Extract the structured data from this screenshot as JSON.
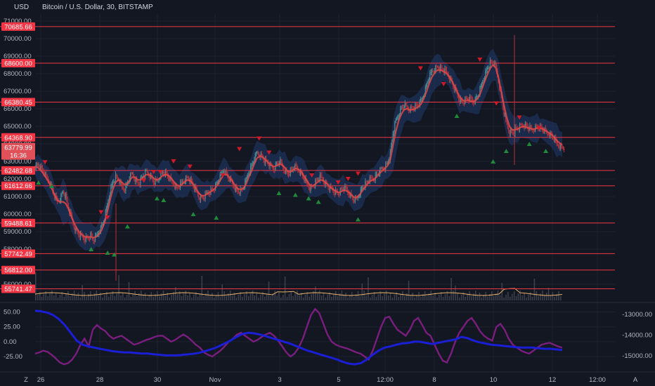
{
  "header": {
    "currency": "USD",
    "title": "Bitcoin / U.S. Dollar, 30, BITSTAMP"
  },
  "price_axis_ticks": [
    "71000.00",
    "70000.00",
    "69000.00",
    "68000.00",
    "67000.00",
    "66000.00",
    "65000.00",
    "64000.00",
    "63000.00",
    "62000.00",
    "61000.00",
    "60000.00",
    "59000.00",
    "58000.00",
    "56000.00"
  ],
  "current_price": {
    "value": "63779.99",
    "countdown": "16:36"
  },
  "x_ticks": [
    "26",
    "28",
    "30",
    "Nov",
    "3",
    "5",
    "12:00",
    "8",
    "10",
    "12",
    "12:00"
  ],
  "footer": {
    "left_icon": "Z",
    "right_icon": "A"
  },
  "oscillator_left_ticks": [
    "50.00",
    "25.00",
    "0.00",
    "-25.00"
  ],
  "oscillator_right_ticks": [
    "-13000.00",
    "-14000.00",
    "-15000.00"
  ],
  "colors": {
    "background": "#131722",
    "grid": "#1e222d",
    "level_line": "#f23645",
    "ma_line": "#e04848",
    "band_fill": "#1f3a6b",
    "up_candle": "#4a8a90",
    "down_candle": "#b3323d",
    "buy_marker": "#1f8a3a",
    "sell_marker": "#d01a2a",
    "osc_blue": "#1a1fd6",
    "osc_purple": "#7a1e7e",
    "volume_ma": "#e8b46a"
  },
  "chart_data": {
    "type": "candlestick",
    "title": "Bitcoin / U.S. Dollar, 30, BITSTAMP",
    "x_tick_labels": [
      "26",
      "28",
      "30",
      "Nov",
      "3",
      "5",
      "12:00",
      "8",
      "10",
      "12",
      "12:00"
    ],
    "ylim": [
      55200,
      71400
    ],
    "levels": [
      "70685.66",
      "68600.00",
      "66380.45",
      "64368.90",
      "62482.68",
      "61612.66",
      "59488.61",
      "57742.49",
      "56812.00",
      "55741.47"
    ],
    "close_profile": [
      62700,
      62850,
      62600,
      62400,
      62100,
      61900,
      61500,
      61000,
      60700,
      60900,
      61300,
      61000,
      60300,
      59800,
      59300,
      59000,
      58800,
      58700,
      58600,
      58650,
      58800,
      58500,
      58700,
      59000,
      59300,
      59800,
      60500,
      61300,
      61800,
      62100,
      62000,
      61600,
      61400,
      61600,
      62100,
      62300,
      62000,
      61700,
      61900,
      62200,
      62400,
      62300,
      62000,
      61800,
      61900,
      62200,
      62400,
      62300,
      62100,
      61900,
      61700,
      61500,
      61600,
      61800,
      62000,
      62100,
      61900,
      61600,
      61300,
      61000,
      60900,
      61000,
      61200,
      61300,
      61400,
      61600,
      61900,
      62200,
      62500,
      62300,
      62000,
      61800,
      61500,
      61300,
      61300,
      61500,
      61900,
      62400,
      62700,
      63200,
      63500,
      63400,
      63200,
      63000,
      62900,
      62700,
      62600,
      62800,
      63000,
      62800,
      62500,
      62300,
      62400,
      62600,
      62700,
      62500,
      62300,
      62000,
      61700,
      61500,
      61600,
      61800,
      62000,
      62100,
      61900,
      61700,
      61500,
      61400,
      61300,
      61200,
      61300,
      61500,
      61400,
      61200,
      61000,
      60800,
      60900,
      61200,
      61500,
      61700,
      61900,
      62000,
      62000,
      62200,
      62400,
      62600,
      62700,
      62900,
      63400,
      64600,
      65300,
      65700,
      66000,
      66200,
      66100,
      66000,
      66050,
      66100,
      66200,
      66400,
      66800,
      67300,
      67800,
      68100,
      68300,
      68400,
      68300,
      68200,
      68100,
      67900,
      67600,
      67200,
      66900,
      66500,
      66400,
      66500,
      66600,
      66500,
      66400,
      66600,
      66900,
      67400,
      67900,
      68300,
      68600,
      68700,
      68400,
      67600,
      66700,
      65800,
      65100,
      64700,
      64600,
      64800,
      64900,
      65000,
      65100,
      65000,
      64900,
      64800,
      64900,
      65000,
      64900,
      64800,
      64700,
      64600,
      64500,
      64300,
      64000,
      63900,
      63800
    ],
    "ma_profile": [
      62700,
      62650,
      62500,
      62300,
      62050,
      61800,
      61450,
      61100,
      60800,
      60700,
      60700,
      60600,
      60300,
      59900,
      59500,
      59200,
      58950,
      58800,
      58700,
      58700,
      58700,
      58650,
      58700,
      58850,
      59100,
      59500,
      60100,
      60800,
      61400,
      61800,
      61950,
      61850,
      61700,
      61700,
      61900,
      62100,
      62100,
      61950,
      61950,
      62100,
      62250,
      62250,
      62150,
      62000,
      61950,
      62050,
      62200,
      62250,
      62200,
      62050,
      61850,
      61650,
      61600,
      61700,
      61850,
      61950,
      61900,
      61700,
      61450,
      61200,
      61050,
      61050,
      61150,
      61250,
      61350,
      61500,
      61750,
      62000,
      62250,
      62250,
      62100,
      61900,
      61650,
      61450,
      61400,
      61450,
      61700,
      62100,
      62450,
      62850,
      63200,
      63300,
      63250,
      63100,
      62950,
      62800,
      62700,
      62750,
      62850,
      62800,
      62650,
      62450,
      62400,
      62500,
      62600,
      62550,
      62400,
      62150,
      61900,
      61650,
      61600,
      61700,
      61850,
      61950,
      61900,
      61750,
      61600,
      61450,
      61350,
      61250,
      61250,
      61350,
      61350,
      61250,
      61100,
      60950,
      60950,
      61100,
      61350,
      61550,
      61750,
      61900,
      61950,
      62100,
      62300,
      62450,
      62600,
      62750,
      63100,
      63900,
      64700,
      65300,
      65700,
      65950,
      66000,
      65950,
      65950,
      66000,
      66100,
      66250,
      66550,
      66950,
      67400,
      67800,
      68050,
      68200,
      68200,
      68150,
      68050,
      67900,
      67650,
      67350,
      67000,
      66700,
      66500,
      66450,
      66500,
      66450,
      66400,
      66500,
      66700,
      67100,
      67550,
      67950,
      68300,
      68500,
      68350,
      67800,
      67000,
      66200,
      65500,
      65000,
      64800,
      64800,
      64850,
      64950,
      65000,
      64950,
      64900,
      64850,
      64850,
      64900,
      64900,
      64850,
      64750,
      64650,
      64550,
      64400,
      64200,
      64050,
      63950
    ],
    "sell_markers": [
      [
        0.03,
        62950
      ],
      [
        0.2,
        60100
      ],
      [
        0.22,
        59800
      ],
      [
        0.33,
        61900
      ],
      [
        0.36,
        62400
      ],
      [
        0.38,
        62400
      ],
      [
        0.42,
        63000
      ],
      [
        0.47,
        62700
      ],
      [
        0.57,
        62200
      ],
      [
        0.62,
        63700
      ],
      [
        0.68,
        64300
      ],
      [
        0.71,
        63500
      ],
      [
        0.84,
        62200
      ],
      [
        0.92,
        61800
      ],
      [
        0.95,
        62000
      ],
      [
        0.98,
        62300
      ],
      [
        1.17,
        68300
      ],
      [
        1.24,
        67400
      ],
      [
        1.35,
        68800
      ],
      [
        1.4,
        66300
      ],
      [
        1.47,
        65500
      ],
      [
        1.53,
        64900
      ]
    ],
    "buy_markers": [
      [
        0.01,
        61800
      ],
      [
        0.05,
        61600
      ],
      [
        0.17,
        58000
      ],
      [
        0.22,
        57800
      ],
      [
        0.24,
        57700
      ],
      [
        0.28,
        59300
      ],
      [
        0.37,
        60900
      ],
      [
        0.39,
        60800
      ],
      [
        0.48,
        60000
      ],
      [
        0.55,
        59800
      ],
      [
        0.74,
        61200
      ],
      [
        0.79,
        61100
      ],
      [
        0.83,
        60900
      ],
      [
        0.86,
        60700
      ],
      [
        0.98,
        59700
      ],
      [
        1.28,
        65600
      ],
      [
        1.39,
        63000
      ],
      [
        1.43,
        63600
      ],
      [
        1.5,
        64000
      ],
      [
        1.55,
        63600
      ]
    ],
    "volume_ma_level": "low",
    "oscillator": {
      "left_ylim": [
        -45,
        60
      ],
      "right_ylim": [
        -15600,
        -12600
      ],
      "blue_series_name": "",
      "purple_series_name": "",
      "blue_profile": [
        52,
        51,
        49,
        45,
        38,
        28,
        15,
        2,
        -5,
        -8,
        -10,
        -12,
        -14,
        -16,
        -17,
        -18,
        -18,
        -19,
        -20,
        -20,
        -21,
        -22,
        -23,
        -23,
        -23,
        -22,
        -21,
        -20,
        -18,
        -15,
        -12,
        -8,
        -3,
        2,
        8,
        13,
        15,
        14,
        12,
        9,
        6,
        3,
        0,
        -3,
        -7,
        -11,
        -15,
        -18,
        -21,
        -24,
        -27,
        -30,
        -34,
        -37,
        -38,
        -36,
        -30,
        -22,
        -15,
        -10,
        -8,
        -5,
        -3,
        -2,
        0,
        0,
        -2,
        -4,
        -2,
        0,
        2,
        4,
        8,
        6,
        2,
        -1,
        -3,
        -5,
        -6,
        -7,
        -8,
        -9,
        -10,
        -10,
        -10,
        -11,
        -12,
        -12,
        -13,
        -14
      ],
      "purple_profile": [
        -20,
        -18,
        -15,
        -17,
        -22,
        -28,
        -35,
        -38,
        -36,
        -30,
        -20,
        -5,
        5,
        -8,
        20,
        28,
        22,
        18,
        10,
        5,
        8,
        10,
        5,
        0,
        -5,
        -3,
        0,
        3,
        5,
        8,
        10,
        10,
        5,
        0,
        3,
        8,
        12,
        8,
        2,
        -5,
        -10,
        -18,
        -22,
        -25,
        -20,
        -15,
        -8,
        0,
        5,
        12,
        15,
        10,
        5,
        0,
        3,
        8,
        12,
        15,
        10,
        2,
        -8,
        -18,
        -25,
        -20,
        -10,
        5,
        25,
        45,
        55,
        48,
        30,
        12,
        0,
        -5,
        -8,
        -10,
        -12,
        -15,
        -18,
        -20,
        -25,
        -30,
        -15,
        5,
        25,
        40,
        42,
        30,
        20,
        15,
        10,
        20,
        35,
        40,
        28,
        15,
        10,
        -5,
        -20,
        -32,
        -35,
        -20,
        0,
        15,
        25,
        35,
        40,
        30,
        18,
        10,
        5,
        2,
        25,
        30,
        20,
        5,
        -5,
        -10,
        -15,
        -18,
        -20,
        -15,
        -10,
        -5,
        -3,
        -2,
        -5,
        -8,
        -10
      ]
    }
  }
}
